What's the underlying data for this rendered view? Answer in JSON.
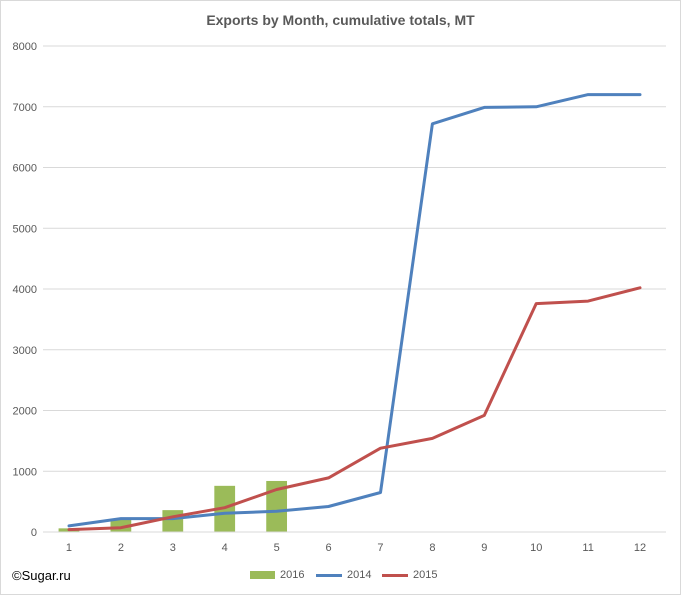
{
  "chart_data": {
    "type": "bar+line",
    "title": "Exports by Month, cumulative totals, MT",
    "x": [
      1,
      2,
      3,
      4,
      5,
      6,
      7,
      8,
      9,
      10,
      11,
      12
    ],
    "x_tick_labels": [
      "1",
      "2",
      "3",
      "4",
      "5",
      "6",
      "7",
      "8",
      "9",
      "10",
      "11",
      "12"
    ],
    "y_tick_labels": [
      "0",
      "1000",
      "2000",
      "3000",
      "4000",
      "5000",
      "6000",
      "7000",
      "8000"
    ],
    "ylim": [
      0,
      8000
    ],
    "grid": true,
    "legend_position": "bottom",
    "series": [
      {
        "name": "2016",
        "kind": "bar",
        "color": "#9bbb59",
        "values": [
          60,
          200,
          360,
          760,
          840,
          null,
          null,
          null,
          null,
          null,
          null,
          null
        ]
      },
      {
        "name": "2014",
        "kind": "line",
        "color": "#4f81bd",
        "values": [
          100,
          220,
          220,
          310,
          340,
          420,
          650,
          6720,
          6990,
          7000,
          7200,
          7200
        ]
      },
      {
        "name": "2015",
        "kind": "line",
        "color": "#c0504d",
        "values": [
          40,
          70,
          250,
          400,
          700,
          890,
          1380,
          1540,
          1920,
          3760,
          3800,
          4020
        ]
      }
    ]
  },
  "credit": "©Sugar.ru"
}
